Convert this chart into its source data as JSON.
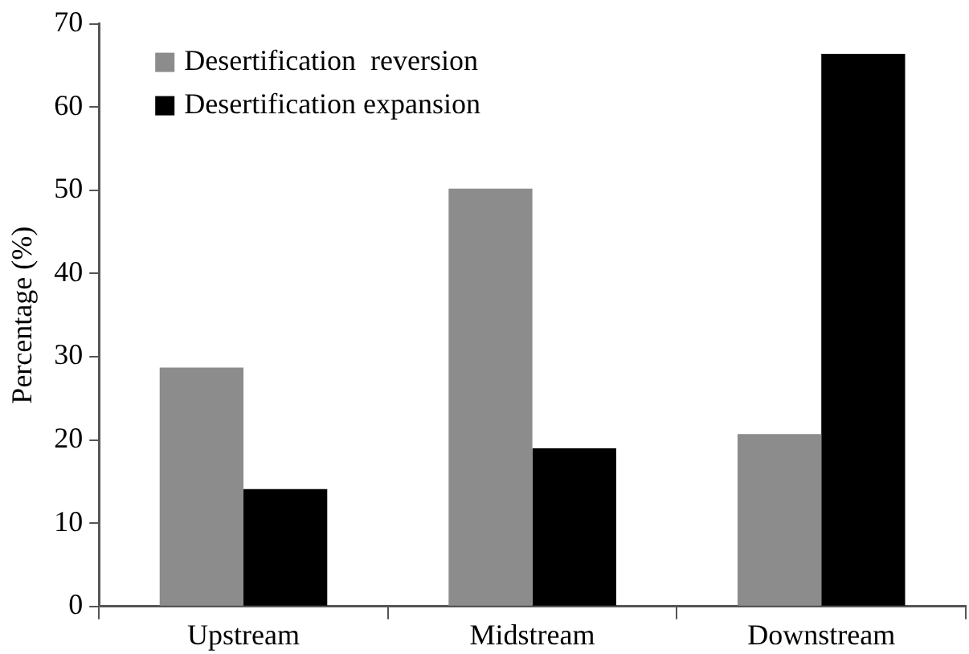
{
  "chart_data": {
    "type": "bar",
    "ylabel": "Percentage (%)",
    "categories": [
      "Upstream",
      "Midstream",
      "Downstream"
    ],
    "series": [
      {
        "name": "Desertification  reversion",
        "color": "#8c8c8c",
        "values": [
          28.7,
          50.2,
          20.7
        ]
      },
      {
        "name": "Desertification expansion",
        "color": "#000000",
        "values": [
          14.1,
          19.0,
          66.4
        ]
      }
    ],
    "ylim": [
      0,
      70
    ],
    "yticks": [
      0,
      10,
      20,
      30,
      40,
      50,
      60,
      70
    ],
    "grid": false,
    "legend": "top left"
  }
}
